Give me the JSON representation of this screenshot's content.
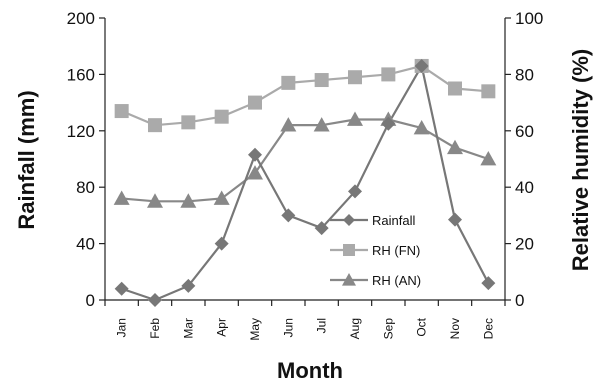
{
  "chart_data": {
    "type": "line",
    "title": "",
    "xlabel": "Month",
    "ylabel": "Rainfall (mm)",
    "y2label": "Relative humidity (%)",
    "categories": [
      "Jan",
      "Feb",
      "Mar",
      "Apr",
      "May",
      "Jun",
      "Jul",
      "Aug",
      "Sep",
      "Oct",
      "Nov",
      "Dec"
    ],
    "ylim": [
      0,
      200
    ],
    "y2lim": [
      0,
      100
    ],
    "yticks": [
      "0",
      "40",
      "80",
      "120",
      "160",
      "200"
    ],
    "y2ticks": [
      "0",
      "20",
      "40",
      "60",
      "80",
      "100"
    ],
    "grid": false,
    "legend_position": "lower-right",
    "series": [
      {
        "name": "Rainfall",
        "axis": "left",
        "marker": "diamond",
        "color": "#777777",
        "values": [
          8,
          0,
          10,
          40,
          103,
          60,
          51,
          77,
          125,
          166,
          57,
          12
        ]
      },
      {
        "name": "RH (FN)",
        "axis": "right",
        "marker": "square",
        "color": "#aaaaaa",
        "values": [
          67,
          62,
          63,
          65,
          70,
          77,
          78,
          79,
          80,
          83,
          75,
          74
        ]
      },
      {
        "name": "RH (AN)",
        "axis": "right",
        "marker": "triangle",
        "color": "#888888",
        "values": [
          36,
          35,
          35,
          36,
          45,
          62,
          62,
          64,
          64,
          61,
          54,
          50
        ]
      }
    ]
  }
}
